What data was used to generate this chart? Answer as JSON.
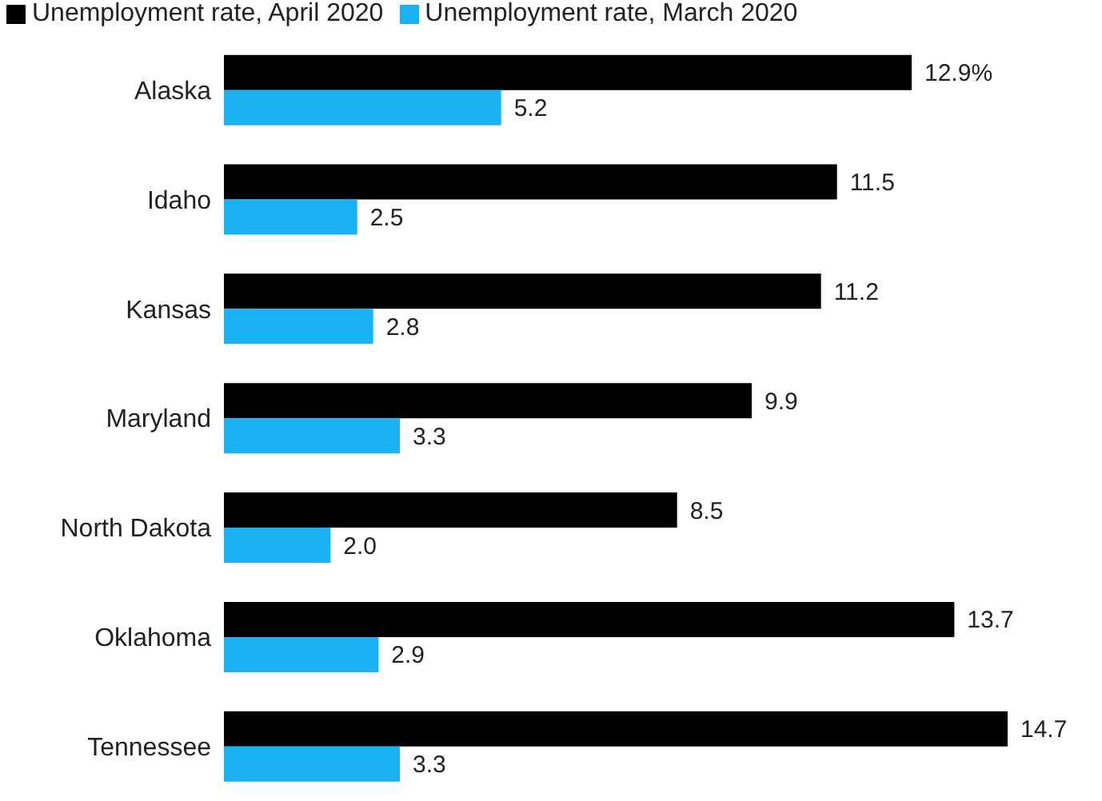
{
  "chart_data": {
    "type": "bar",
    "orientation": "horizontal",
    "legend": "top left",
    "categories": [
      "Alaska",
      "Idaho",
      "Kansas",
      "Maryland",
      "North Dakota",
      "Oklahoma",
      "Tennessee"
    ],
    "series": [
      {
        "name": "Unemployment rate, April 2020",
        "color": "#000000",
        "values": [
          12.9,
          11.5,
          11.2,
          9.9,
          8.5,
          13.7,
          14.7
        ],
        "value_labels": [
          "12.9%",
          "11.5",
          "11.2",
          "9.9",
          "8.5",
          "13.7",
          "14.7"
        ]
      },
      {
        "name": "Unemployment rate, March 2020",
        "color": "#1ab2f2",
        "values": [
          5.2,
          2.5,
          2.8,
          3.3,
          2.0,
          2.9,
          3.3
        ],
        "value_labels": [
          "5.2",
          "2.5",
          "2.8",
          "3.3",
          "2.0",
          "2.9",
          "3.3"
        ]
      }
    ]
  }
}
